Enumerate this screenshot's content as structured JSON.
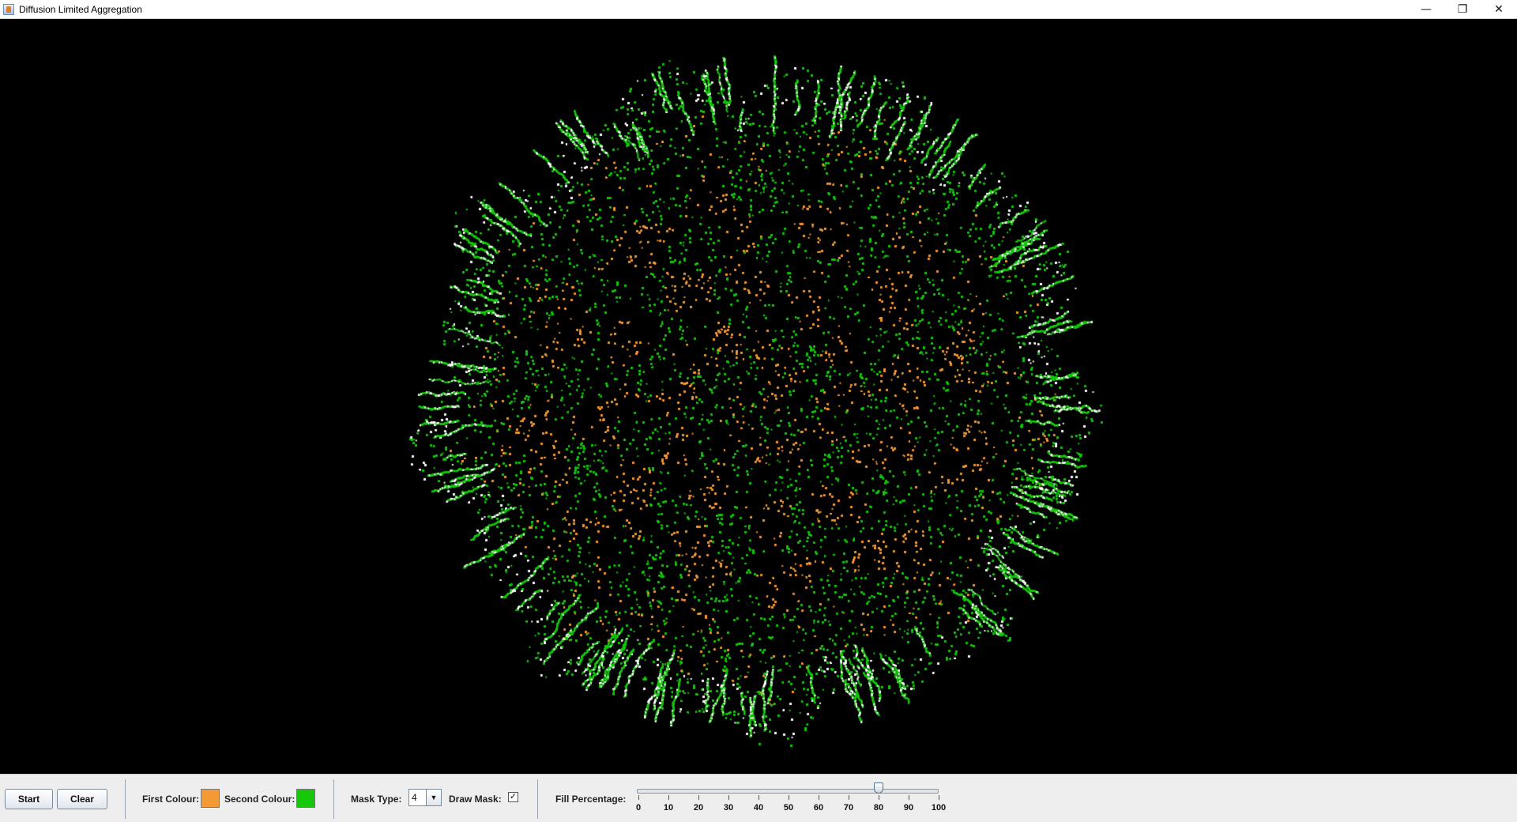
{
  "window": {
    "title": "Diffusion Limited Aggregation",
    "controls": {
      "minimize": "—",
      "restore": "❐",
      "close": "✕"
    }
  },
  "canvas": {
    "background": "#000000",
    "first_colour": "#f39a36",
    "second_colour": "#16c70c",
    "edge_colour": "#ffffff"
  },
  "controls": {
    "start_label": "Start",
    "clear_label": "Clear",
    "first_colour_label": "First Colour:",
    "second_colour_label": "Second Colour:",
    "mask_type_label": "Mask Type:",
    "mask_type_value": "4",
    "draw_mask_label": "Draw Mask:",
    "draw_mask_checked": true,
    "fill_percentage_label": "Fill Percentage:",
    "fill_percentage_value": 80,
    "fill_ticks": [
      "0",
      "10",
      "20",
      "30",
      "40",
      "50",
      "60",
      "70",
      "80",
      "90",
      "100"
    ]
  }
}
